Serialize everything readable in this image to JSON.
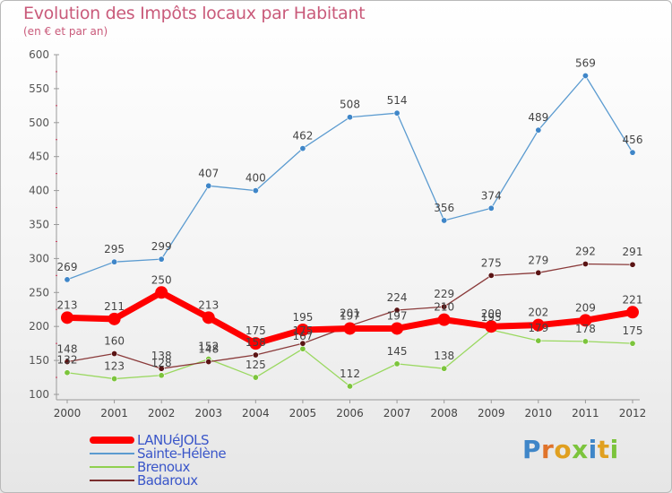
{
  "header": {
    "title": "Evolution des Impôts locaux par Habitant",
    "subtitle": "(en € et par an)"
  },
  "logo": {
    "text": "Proxiti"
  },
  "chart_data": {
    "type": "line",
    "title": "Evolution des Impôts locaux par Habitant",
    "subtitle": "(en € et par an)",
    "xlabel": "",
    "ylabel": "",
    "ylim": [
      100,
      600
    ],
    "yticks": [
      100,
      150,
      200,
      250,
      300,
      350,
      400,
      450,
      500,
      550,
      600
    ],
    "categories": [
      "2000",
      "2001",
      "2002",
      "2003",
      "2004",
      "2005",
      "2006",
      "2007",
      "2008",
      "2009",
      "2010",
      "2011",
      "2012"
    ],
    "grid": false,
    "legend_position": "bottom-left",
    "series": [
      {
        "name": "LANUéJOLS",
        "color": "#ff0000",
        "values": [
          213,
          211,
          250,
          213,
          175,
          195,
          197,
          197,
          210,
          200,
          202,
          209,
          221
        ],
        "labels": [
          "213",
          "211",
          "250",
          "213",
          "175",
          "195",
          "197",
          "197",
          "210",
          "200",
          "202",
          "209",
          "221"
        ]
      },
      {
        "name": "Sainte-Hélène",
        "color": "#5b9bd0",
        "values": [
          269,
          295,
          299,
          407,
          400,
          462,
          508,
          514,
          356,
          374,
          489,
          569,
          456
        ],
        "labels": [
          "269",
          "295",
          "299",
          "407",
          "400",
          "462",
          "508",
          "514",
          "356",
          "374",
          "489",
          "569",
          "456"
        ]
      },
      {
        "name": "Brenoux",
        "color": "#90d050",
        "values": [
          132,
          123,
          128,
          152,
          125,
          167,
          112,
          145,
          138,
          195,
          179,
          178,
          175
        ],
        "labels": [
          "132",
          "123",
          "128",
          "152",
          "125",
          "167",
          "112",
          "145",
          "138",
          "195",
          "179",
          "178",
          "175"
        ]
      },
      {
        "name": "Badaroux",
        "color": "#7a2e2e",
        "values": [
          148,
          160,
          138,
          148,
          158,
          175,
          201,
          224,
          229,
          275,
          279,
          292,
          291
        ],
        "labels": [
          "148",
          "160",
          "138",
          "148",
          "158",
          "175",
          "201",
          "224",
          "229",
          "275",
          "279",
          "292",
          "291"
        ]
      }
    ]
  }
}
